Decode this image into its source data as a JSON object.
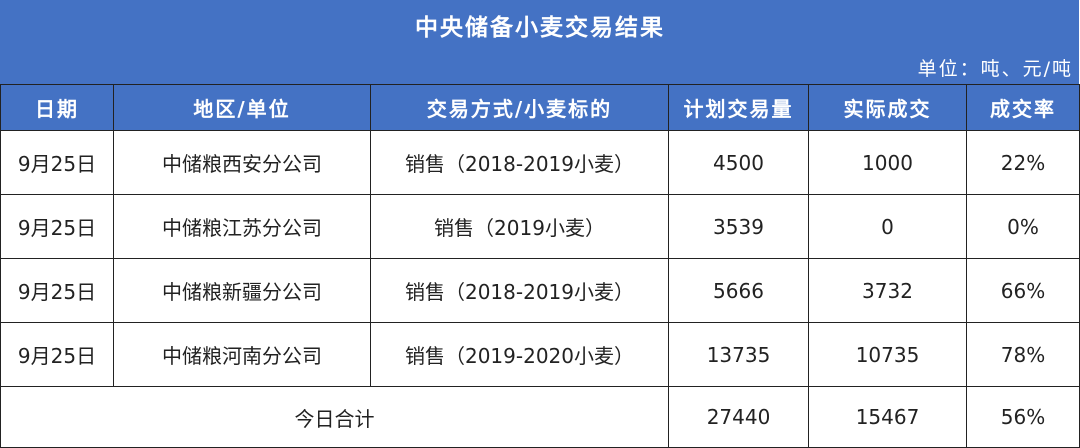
{
  "title": "中央储备小麦交易结果",
  "unit": "单位：吨、元/吨",
  "headers": [
    "日期",
    "地区/单位",
    "交易方式/小麦标的",
    "计划交易量",
    "实际成交",
    "成交率"
  ],
  "rows": [
    {
      "date": "9月25日",
      "unit": "中储粮西安分公司",
      "method": "销售（2018-2019小麦）",
      "planned": "4500",
      "actual": "1000",
      "rate": "22%"
    },
    {
      "date": "9月25日",
      "unit": "中储粮江苏分公司",
      "method": "销售（2019小麦）",
      "planned": "3539",
      "actual": "0",
      "rate": "0%"
    },
    {
      "date": "9月25日",
      "unit": "中储粮新疆分公司",
      "method": "销售（2018-2019小麦）",
      "planned": "5666",
      "actual": "3732",
      "rate": "66%"
    },
    {
      "date": "9月25日",
      "unit": "中储粮河南分公司",
      "method": "销售（2019-2020小麦）",
      "planned": "13735",
      "actual": "10735",
      "rate": "78%"
    }
  ],
  "total": {
    "label": "今日合计",
    "planned": "27440",
    "actual": "15467",
    "rate": "56%"
  },
  "colors": {
    "header_bg": "#4472c4",
    "header_text": "#ffffff"
  }
}
